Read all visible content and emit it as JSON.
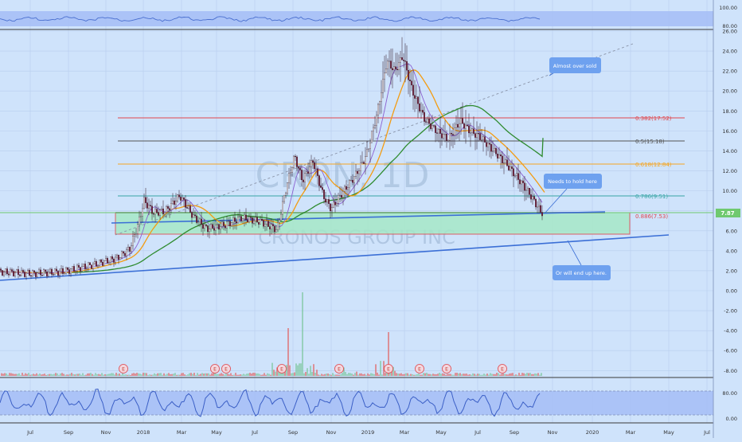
{
  "watermark": {
    "symbol": "CRON, 1D",
    "company": "CRONOS GROUP INC"
  },
  "price_axis": {
    "labels": [
      "26.00",
      "24.00",
      "22.00",
      "20.00",
      "18.00",
      "16.00",
      "14.00",
      "12.00",
      "10.00",
      "8.00",
      "6.00",
      "4.00",
      "2.00",
      "0.00",
      "-2.00",
      "-4.00",
      "-6.00",
      "-8.00"
    ]
  },
  "top_panel_axis": {
    "labels": [
      "100.00",
      "80.00"
    ]
  },
  "bottom_panel_axis": {
    "labels": [
      "80.00",
      "0.00"
    ]
  },
  "time_axis": {
    "labels": [
      "Jul",
      "Sep",
      "Nov",
      "2018",
      "Mar",
      "May",
      "Jul",
      "Sep",
      "Nov",
      "2019",
      "Mar",
      "May",
      "Jul",
      "Sep",
      "Nov",
      "2020",
      "Mar",
      "May",
      "Jul"
    ]
  },
  "last_price": {
    "label": "7.87",
    "color": "#6fc96f"
  },
  "fib_levels": [
    {
      "label": "0.382(17.52)",
      "color": "#e0474c"
    },
    {
      "label": "0.5(15.18)",
      "color": "#555555"
    },
    {
      "label": "0.618(12.84)",
      "color": "#f5a623"
    },
    {
      "label": "0.786(9.51)",
      "color": "#3aa6a6"
    },
    {
      "label": "0.886(7.53)",
      "color": "#e0474c"
    }
  ],
  "callouts": [
    {
      "text": "Almost over sold"
    },
    {
      "text": "Needs to hold here"
    },
    {
      "text": "Or will end up here."
    }
  ],
  "earnings_markers": {
    "label": "E"
  },
  "colors": {
    "background": "#cfe3fb",
    "panel_band": "#9fb8f5",
    "candle_up": "#ffffff",
    "candle_down": "#7a1f3a",
    "ema_orange": "#f39c12",
    "sma_green": "#2e8b2e",
    "trendline_blue": "#3b6fd6",
    "zone_fill": "#a6e8c8",
    "volume_up": "#7ec8a0",
    "volume_down": "#e06a6a"
  }
}
